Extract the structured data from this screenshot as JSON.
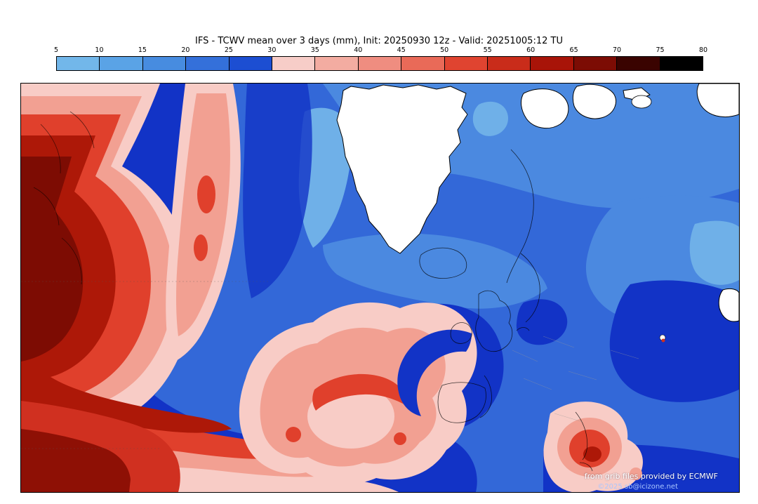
{
  "title": "IFS - TCWV mean over 3 days (mm), Init: 20250930 12z - Valid: 20251005:12 TU",
  "colorbar": {
    "tick_labels": [
      "5",
      "10",
      "15",
      "20",
      "25",
      "30",
      "35",
      "40",
      "45",
      "50",
      "55",
      "60",
      "65",
      "70",
      "75",
      "80"
    ],
    "segment_colors": [
      "#72b7ea",
      "#5aa3e6",
      "#478ce0",
      "#3470da",
      "#1c4ed2",
      "#f7cdc8",
      "#f3aca1",
      "#ef8d80",
      "#e96a58",
      "#e04430",
      "#c92c1a",
      "#a81408",
      "#7c0c04",
      "#3a0300",
      "#000000"
    ]
  },
  "map": {
    "attribution_line1": "from grib files provided by ECMWF",
    "attribution_line2": "©2025 sb@icizone.net",
    "ocean_base_color": "#3368d8",
    "land_no_data_color": "#ffffff"
  }
}
